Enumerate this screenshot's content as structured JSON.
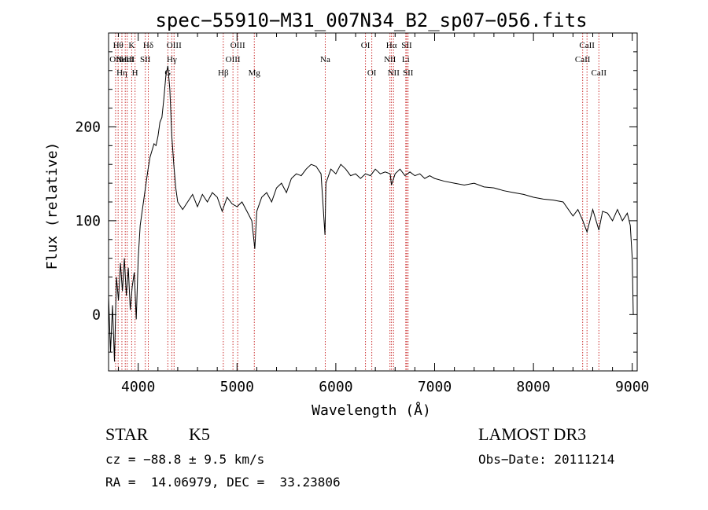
{
  "chart_data": {
    "type": "line",
    "title": "spec−55910−M31_007N34_B2_sp07−056.fits",
    "xlabel": "Wavelength (Å)",
    "ylabel": "Flux (relative)",
    "xlim": [
      3700,
      9050
    ],
    "ylim": [
      -60,
      300
    ],
    "xticks": [
      {
        "v": 4000,
        "label": "4000"
      },
      {
        "v": 5000,
        "label": "5000"
      },
      {
        "v": 6000,
        "label": "6000"
      },
      {
        "v": 7000,
        "label": "7000"
      },
      {
        "v": 8000,
        "label": "8000"
      },
      {
        "v": 9000,
        "label": "9000"
      }
    ],
    "yticks": [
      {
        "v": 0,
        "label": "0"
      },
      {
        "v": 100,
        "label": "100"
      },
      {
        "v": 200,
        "label": "200"
      }
    ],
    "grid": false,
    "line_color": "#000000",
    "marker_color": "#cc3333",
    "series": [
      {
        "values": [
          [
            3700,
            20
          ],
          [
            3720,
            -40
          ],
          [
            3740,
            10
          ],
          [
            3760,
            -50
          ],
          [
            3780,
            40
          ],
          [
            3800,
            15
          ],
          [
            3820,
            55
          ],
          [
            3840,
            25
          ],
          [
            3860,
            60
          ],
          [
            3880,
            20
          ],
          [
            3900,
            50
          ],
          [
            3920,
            5
          ],
          [
            3940,
            30
          ],
          [
            3960,
            45
          ],
          [
            3980,
            -5
          ],
          [
            4000,
            60
          ],
          [
            4020,
            95
          ],
          [
            4040,
            110
          ],
          [
            4060,
            125
          ],
          [
            4080,
            140
          ],
          [
            4100,
            155
          ],
          [
            4120,
            168
          ],
          [
            4140,
            175
          ],
          [
            4160,
            182
          ],
          [
            4180,
            180
          ],
          [
            4200,
            190
          ],
          [
            4220,
            205
          ],
          [
            4240,
            210
          ],
          [
            4260,
            230
          ],
          [
            4280,
            255
          ],
          [
            4300,
            265
          ],
          [
            4320,
            240
          ],
          [
            4340,
            190
          ],
          [
            4360,
            160
          ],
          [
            4380,
            135
          ],
          [
            4400,
            120
          ],
          [
            4450,
            112
          ],
          [
            4500,
            120
          ],
          [
            4550,
            128
          ],
          [
            4600,
            115
          ],
          [
            4650,
            128
          ],
          [
            4700,
            120
          ],
          [
            4750,
            130
          ],
          [
            4800,
            125
          ],
          [
            4850,
            110
          ],
          [
            4900,
            125
          ],
          [
            4950,
            118
          ],
          [
            5000,
            115
          ],
          [
            5050,
            120
          ],
          [
            5100,
            110
          ],
          [
            5150,
            100
          ],
          [
            5180,
            70
          ],
          [
            5200,
            110
          ],
          [
            5250,
            125
          ],
          [
            5300,
            130
          ],
          [
            5350,
            120
          ],
          [
            5400,
            135
          ],
          [
            5450,
            140
          ],
          [
            5500,
            130
          ],
          [
            5550,
            145
          ],
          [
            5600,
            150
          ],
          [
            5650,
            148
          ],
          [
            5700,
            155
          ],
          [
            5750,
            160
          ],
          [
            5800,
            158
          ],
          [
            5850,
            150
          ],
          [
            5890,
            85
          ],
          [
            5900,
            140
          ],
          [
            5950,
            155
          ],
          [
            6000,
            150
          ],
          [
            6050,
            160
          ],
          [
            6100,
            155
          ],
          [
            6150,
            148
          ],
          [
            6200,
            150
          ],
          [
            6250,
            145
          ],
          [
            6300,
            150
          ],
          [
            6350,
            148
          ],
          [
            6400,
            155
          ],
          [
            6450,
            150
          ],
          [
            6500,
            152
          ],
          [
            6550,
            150
          ],
          [
            6563,
            138
          ],
          [
            6600,
            150
          ],
          [
            6650,
            155
          ],
          [
            6700,
            148
          ],
          [
            6750,
            152
          ],
          [
            6800,
            148
          ],
          [
            6850,
            150
          ],
          [
            6900,
            145
          ],
          [
            6950,
            148
          ],
          [
            7000,
            145
          ],
          [
            7100,
            142
          ],
          [
            7200,
            140
          ],
          [
            7300,
            138
          ],
          [
            7400,
            140
          ],
          [
            7500,
            136
          ],
          [
            7600,
            135
          ],
          [
            7700,
            132
          ],
          [
            7800,
            130
          ],
          [
            7900,
            128
          ],
          [
            8000,
            125
          ],
          [
            8100,
            123
          ],
          [
            8200,
            122
          ],
          [
            8300,
            120
          ],
          [
            8400,
            105
          ],
          [
            8450,
            112
          ],
          [
            8500,
            100
          ],
          [
            8542,
            88
          ],
          [
            8600,
            112
          ],
          [
            8662,
            90
          ],
          [
            8700,
            110
          ],
          [
            8750,
            108
          ],
          [
            8800,
            100
          ],
          [
            8850,
            112
          ],
          [
            8900,
            100
          ],
          [
            8950,
            108
          ],
          [
            8980,
            95
          ],
          [
            9000,
            60
          ],
          [
            9010,
            0
          ]
        ]
      }
    ],
    "lines": [
      {
        "wl": 3771,
        "label": "OII",
        "row": 1
      },
      {
        "wl": 3797,
        "label": "Hθ",
        "row": 0
      },
      {
        "wl": 3835,
        "label": "Hη",
        "row": 2
      },
      {
        "wl": 3869,
        "label": "NeIII",
        "row": 1
      },
      {
        "wl": 3889,
        "label": "HeI",
        "row": 1
      },
      {
        "wl": 3934,
        "label": "K",
        "row": 0
      },
      {
        "wl": 3968,
        "label": "H",
        "row": 2
      },
      {
        "wl": 4072,
        "label": "SII",
        "row": 1
      },
      {
        "wl": 4102,
        "label": "Hδ",
        "row": 0
      },
      {
        "wl": 4300,
        "label": "G",
        "row": 2
      },
      {
        "wl": 4340,
        "label": "Hγ",
        "row": 1
      },
      {
        "wl": 4363,
        "label": "OIII",
        "row": 0
      },
      {
        "wl": 4861,
        "label": "Hβ",
        "row": 2
      },
      {
        "wl": 4959,
        "label": "OIII",
        "row": 1
      },
      {
        "wl": 5007,
        "label": "OIII",
        "row": 0
      },
      {
        "wl": 5175,
        "label": "Mg",
        "row": 2
      },
      {
        "wl": 5893,
        "label": "Na",
        "row": 1
      },
      {
        "wl": 6300,
        "label": "OI",
        "row": 0
      },
      {
        "wl": 6364,
        "label": "OI",
        "row": 2
      },
      {
        "wl": 6548,
        "label": "NII",
        "row": 1
      },
      {
        "wl": 6563,
        "label": "Hα",
        "row": 0
      },
      {
        "wl": 6584,
        "label": "NII",
        "row": 2
      },
      {
        "wl": 6708,
        "label": "Li",
        "row": 1
      },
      {
        "wl": 6717,
        "label": "SII",
        "row": 0
      },
      {
        "wl": 6731,
        "label": "SII",
        "row": 2
      },
      {
        "wl": 8498,
        "label": "CaII",
        "row": 1
      },
      {
        "wl": 8542,
        "label": "CaII",
        "row": 0
      },
      {
        "wl": 8662,
        "label": "CaII",
        "row": 2
      }
    ]
  },
  "info": {
    "class": "STAR",
    "subclass": "K5",
    "survey": "LAMOST DR3",
    "cz": "cz = −88.8 ± 9.5 km/s",
    "obs_date": "Obs−Date: 20111214",
    "radec": "RA =  14.06979, DEC =  33.23806"
  }
}
